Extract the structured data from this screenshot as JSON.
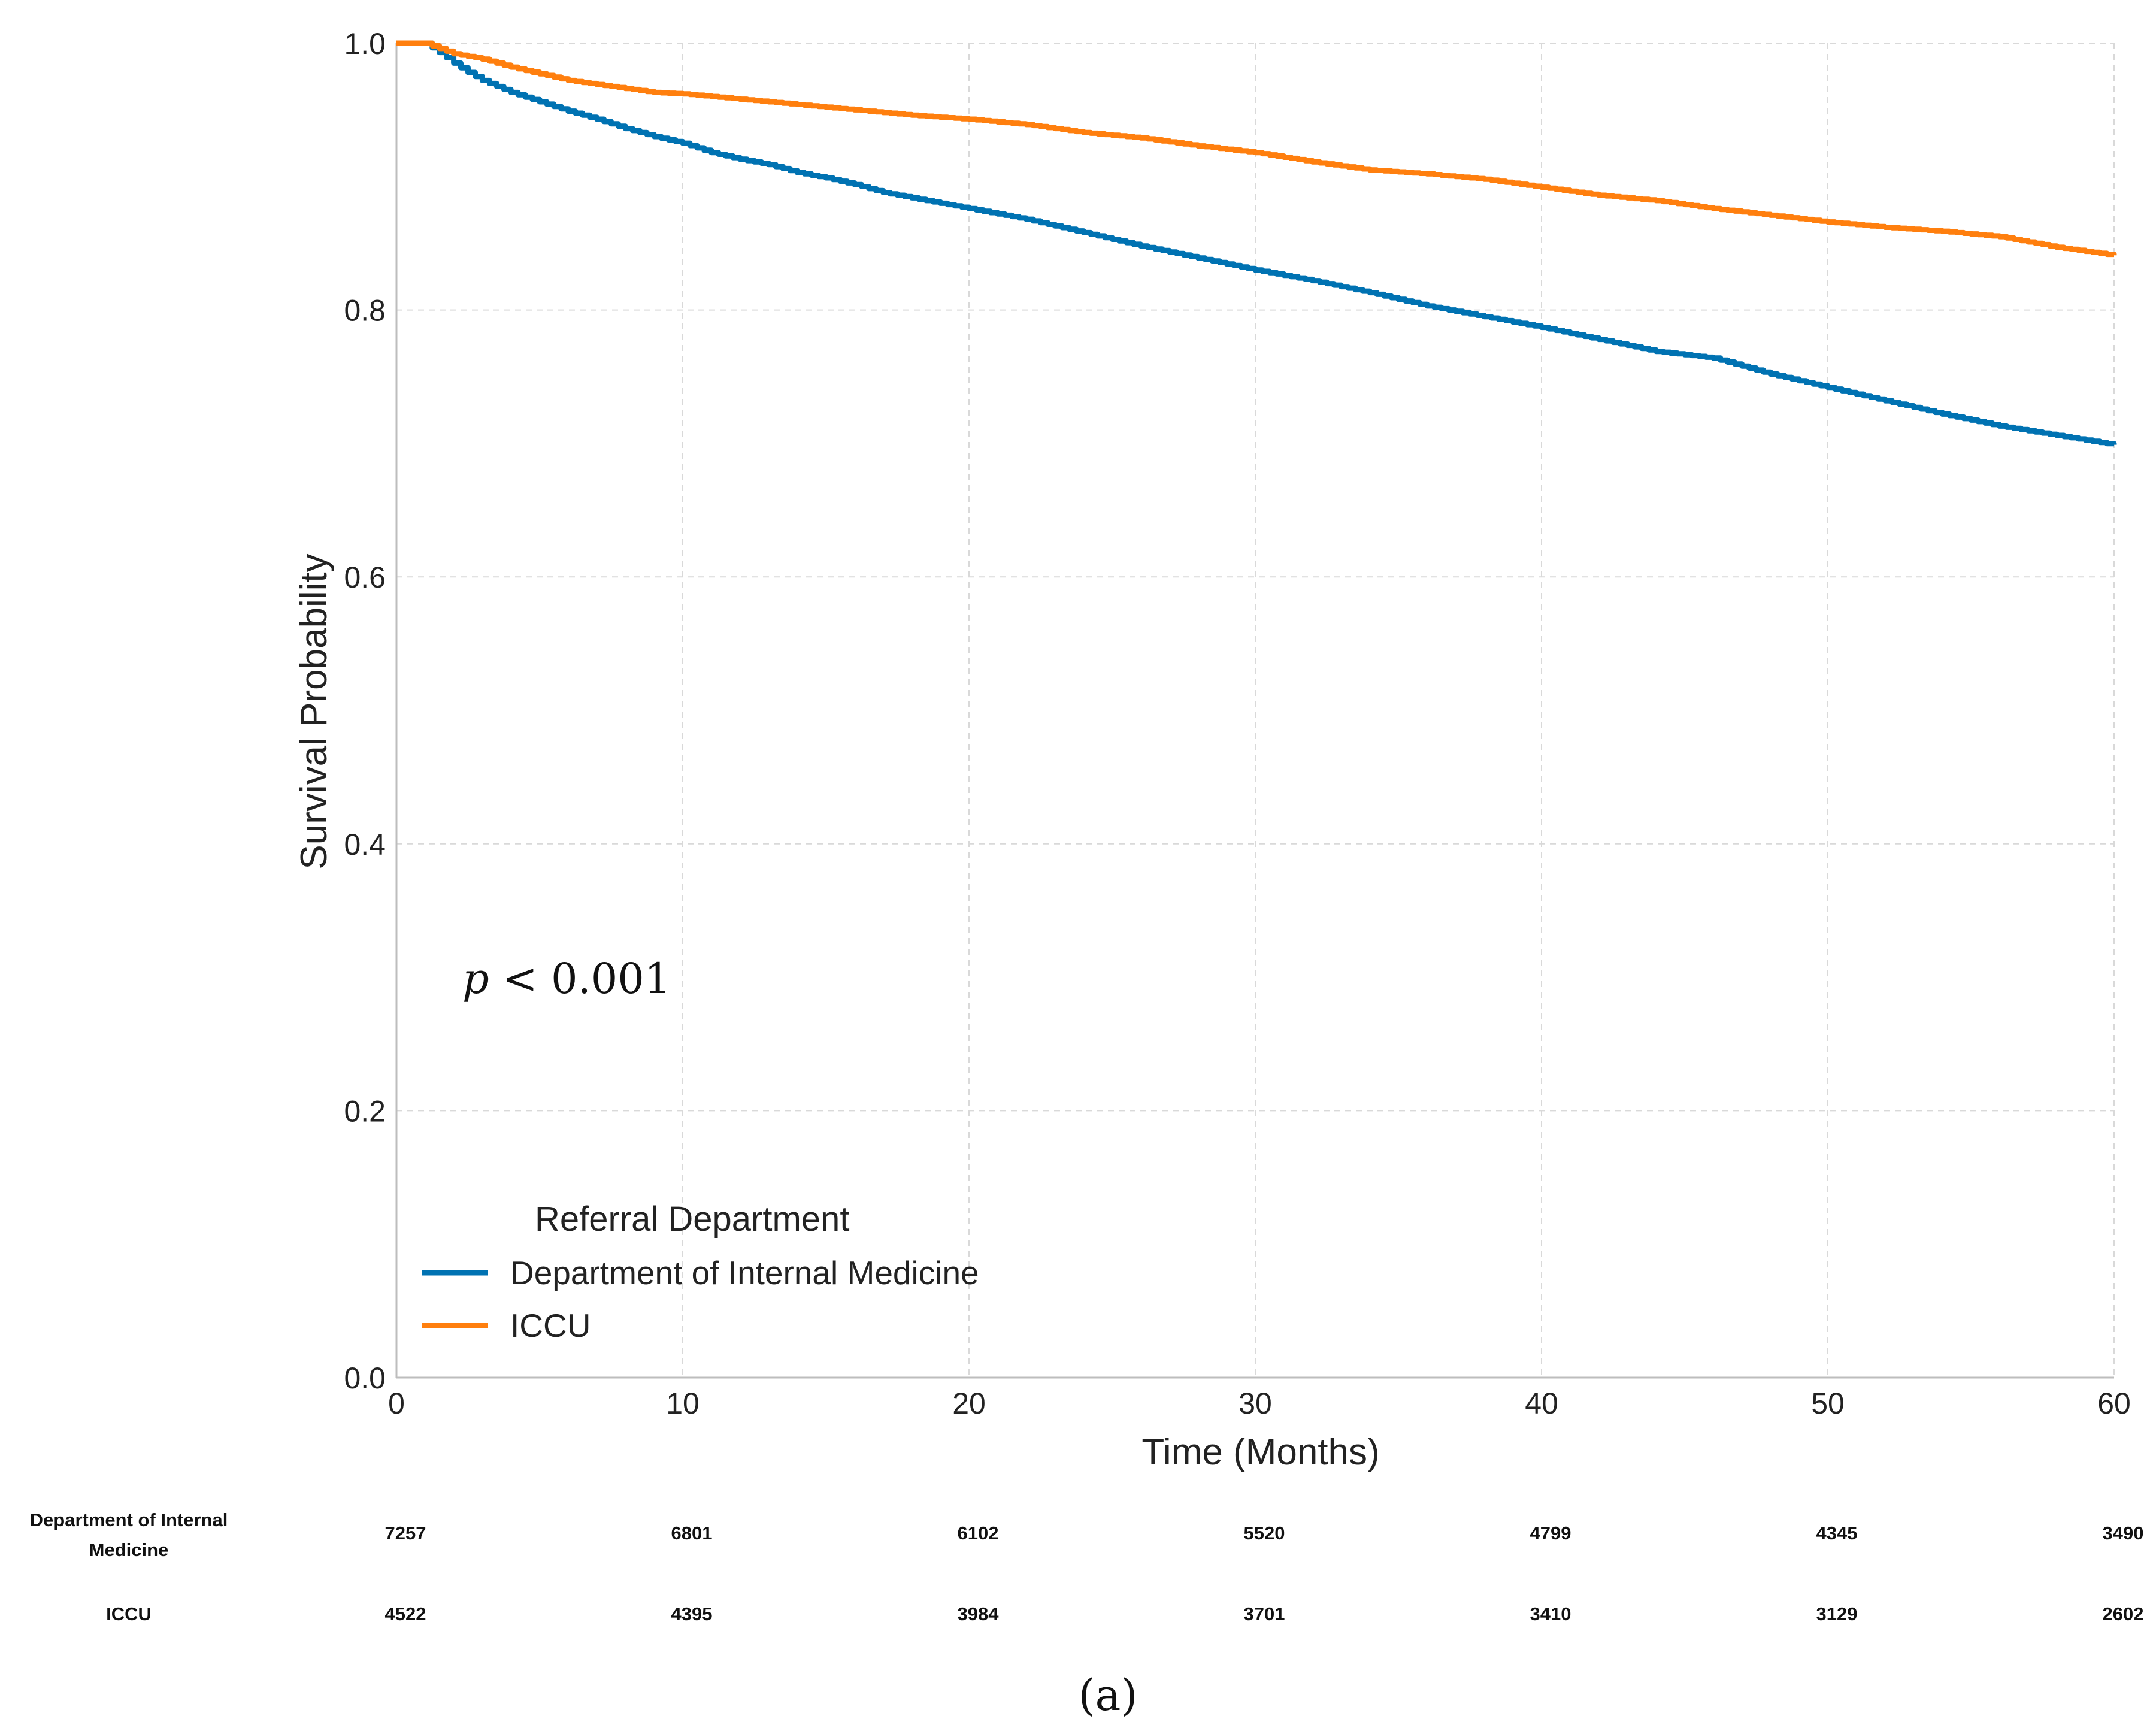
{
  "chart_data": {
    "type": "line",
    "subtype": "kaplan-meier",
    "title": "",
    "xlabel": "Time (Months)",
    "ylabel": "Survival Probability",
    "xlim": [
      0,
      60
    ],
    "ylim": [
      0.0,
      1.0
    ],
    "x_ticks": [
      "0",
      "10",
      "20",
      "30",
      "40",
      "50",
      "60"
    ],
    "y_ticks": [
      "0.0",
      "0.2",
      "0.4",
      "0.6",
      "0.8",
      "1.0"
    ],
    "grid": true,
    "annotation": {
      "italic": "p",
      "text": " < 0.001"
    },
    "legend": {
      "title": "Referral Department",
      "placement": "lower-left"
    },
    "series": [
      {
        "name": "Department of Internal Medicine",
        "color": "#0072b2",
        "x": [
          0,
          1,
          1.5,
          2,
          2.5,
          3,
          4,
          5,
          6,
          7,
          8,
          9,
          10,
          11,
          12,
          13,
          14,
          15,
          16,
          17,
          18,
          19,
          20,
          22,
          24,
          26,
          28,
          30,
          32,
          34,
          36,
          38,
          40,
          42,
          44,
          46,
          48,
          50,
          52,
          54,
          56,
          58,
          60
        ],
        "y": [
          1.0,
          1.0,
          0.993,
          0.985,
          0.978,
          0.972,
          0.963,
          0.956,
          0.949,
          0.943,
          0.936,
          0.93,
          0.925,
          0.918,
          0.913,
          0.909,
          0.903,
          0.899,
          0.894,
          0.888,
          0.884,
          0.88,
          0.876,
          0.868,
          0.858,
          0.848,
          0.839,
          0.83,
          0.822,
          0.813,
          0.803,
          0.795,
          0.787,
          0.778,
          0.769,
          0.764,
          0.752,
          0.742,
          0.732,
          0.722,
          0.713,
          0.706,
          0.699
        ]
      },
      {
        "name": "ICCU",
        "color": "#ff7f0e",
        "x": [
          0,
          1,
          1.5,
          2,
          3,
          4,
          5,
          6,
          7,
          8,
          9,
          10,
          12,
          14,
          16,
          18,
          20,
          22,
          24,
          26,
          28,
          30,
          32,
          34,
          36,
          38,
          40,
          42,
          44,
          46,
          48,
          50,
          52,
          54,
          56,
          58,
          60
        ],
        "y": [
          1.0,
          1.0,
          0.996,
          0.992,
          0.988,
          0.982,
          0.977,
          0.972,
          0.969,
          0.966,
          0.963,
          0.962,
          0.958,
          0.954,
          0.95,
          0.946,
          0.943,
          0.939,
          0.933,
          0.929,
          0.923,
          0.918,
          0.911,
          0.905,
          0.902,
          0.898,
          0.892,
          0.886,
          0.882,
          0.876,
          0.871,
          0.866,
          0.862,
          0.859,
          0.855,
          0.847,
          0.841
        ]
      }
    ],
    "risk_table": {
      "times": [
        0,
        10,
        20,
        30,
        40,
        50,
        60
      ],
      "rows": [
        {
          "label_line1": "Department of Internal",
          "label_line2": "Medicine",
          "counts": [
            "7257",
            "6801",
            "6102",
            "5520",
            "4799",
            "4345",
            "3490"
          ]
        },
        {
          "label_line1": "ICCU",
          "label_line2": "",
          "counts": [
            "4522",
            "4395",
            "3984",
            "3701",
            "3410",
            "3129",
            "2602"
          ]
        }
      ]
    },
    "panel_label": "(a)"
  }
}
